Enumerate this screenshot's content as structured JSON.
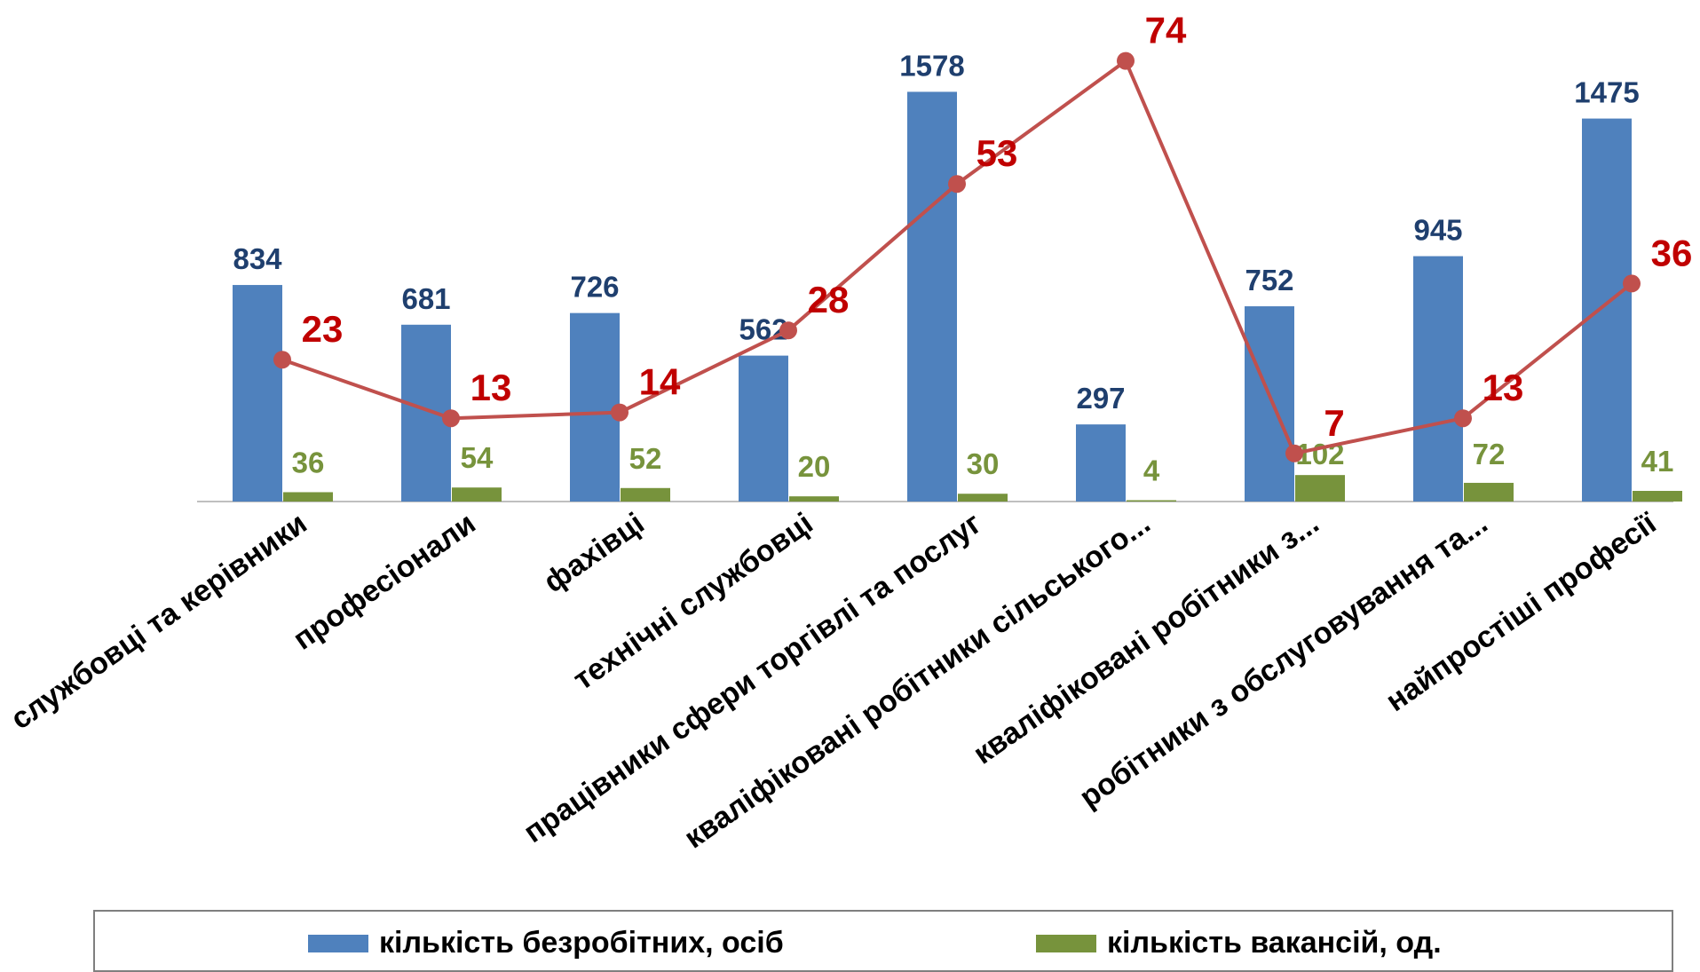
{
  "colors": {
    "unemployed": "#4f81bd",
    "unemployed_label": "#1f3f6e",
    "vacancies": "#77933c",
    "vacancies_label": "#77933c",
    "line": "#c0504d",
    "line_label": "#c00000",
    "axis": "#bfbfbf"
  },
  "chart_data": {
    "type": "bar",
    "categories": [
      "службовці та керівники",
      "професіонали",
      "фахівці",
      "технічні службовці",
      "працівники сфери торгівлі та послуг",
      "кваліфіковані робітники сільського...",
      "кваліфіковані робітники з...",
      "робітники з обслуговування та...",
      "найпростіші професії"
    ],
    "series": [
      {
        "name": "кількість безробітних, осіб",
        "type": "bar",
        "values": [
          834,
          681,
          726,
          562,
          1578,
          297,
          752,
          945,
          1475
        ]
      },
      {
        "name": "кількість вакансій, од.",
        "type": "bar",
        "values": [
          36,
          54,
          52,
          20,
          30,
          4,
          102,
          72,
          41
        ]
      },
      {
        "type": "line",
        "values": [
          23,
          13,
          14,
          28,
          53,
          74,
          7,
          13,
          36
        ]
      }
    ],
    "ylim": [
      0,
      1600
    ],
    "line_ylim": [
      0,
      80
    ],
    "grid": false,
    "legend_position": "bottom"
  },
  "legend": {
    "items": [
      {
        "label": "кількість безробітних, осіб",
        "color": "#4f81bd"
      },
      {
        "label": "кількість вакансій, од.",
        "color": "#77933c"
      }
    ]
  }
}
